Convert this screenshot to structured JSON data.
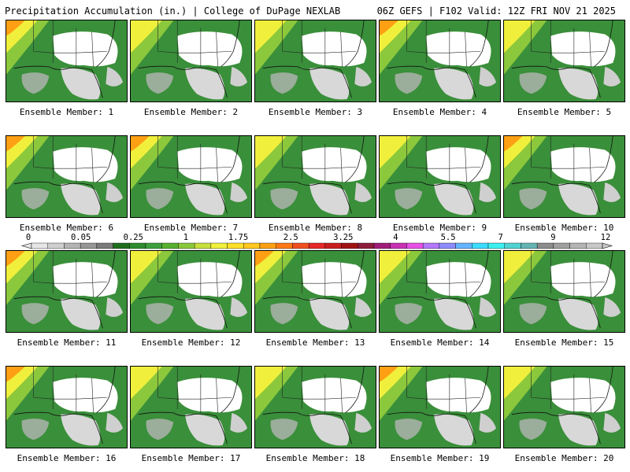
{
  "header": {
    "left": "Precipitation Accumulation (in.) | College of DuPage NEXLAB",
    "right": "06Z GEFS | F102 Valid: 12Z FRI NOV 21 2025"
  },
  "members": [
    "Ensemble Member: 1",
    "Ensemble Member: 2",
    "Ensemble Member: 3",
    "Ensemble Member: 4",
    "Ensemble Member: 5",
    "Ensemble Member: 6",
    "Ensemble Member: 7",
    "Ensemble Member: 8",
    "Ensemble Member: 9",
    "Ensemble Member: 10",
    "Ensemble Member: 11",
    "Ensemble Member: 12",
    "Ensemble Member: 13",
    "Ensemble Member: 14",
    "Ensemble Member: 15",
    "Ensemble Member: 16",
    "Ensemble Member: 17",
    "Ensemble Member: 18",
    "Ensemble Member: 19",
    "Ensemble Member: 20"
  ],
  "colorbar": {
    "labels": [
      "0",
      "0.05",
      "0.25",
      "1",
      "1.75",
      "2.5",
      "3.25",
      "4",
      "5.5",
      "7",
      "9",
      "12"
    ],
    "colors": [
      "#e6e6e6",
      "#cfcfcf",
      "#b4b4b4",
      "#969696",
      "#7a7a7a",
      "#1e6e1e",
      "#2e8b2e",
      "#3ca03c",
      "#58b030",
      "#8cc83c",
      "#c8e03c",
      "#f0f03c",
      "#ffe028",
      "#ffc81e",
      "#ffa014",
      "#ff7814",
      "#f0501e",
      "#e62828",
      "#c81e1e",
      "#a01414",
      "#8c1e3c",
      "#a01e78",
      "#c832b4",
      "#e650e6",
      "#b478ff",
      "#8c8cff",
      "#64b4ff",
      "#3cdcff",
      "#3cf0f0",
      "#50d2d2",
      "#64b4b4",
      "#8c8c8c",
      "#a0a0a0",
      "#b4b4b4",
      "#c8c8c8"
    ]
  },
  "colors": {
    "background": "#ffffff",
    "ocean": "#3a8f3a",
    "dry": "#d8d8d8",
    "heavy": "#ffd23c"
  }
}
